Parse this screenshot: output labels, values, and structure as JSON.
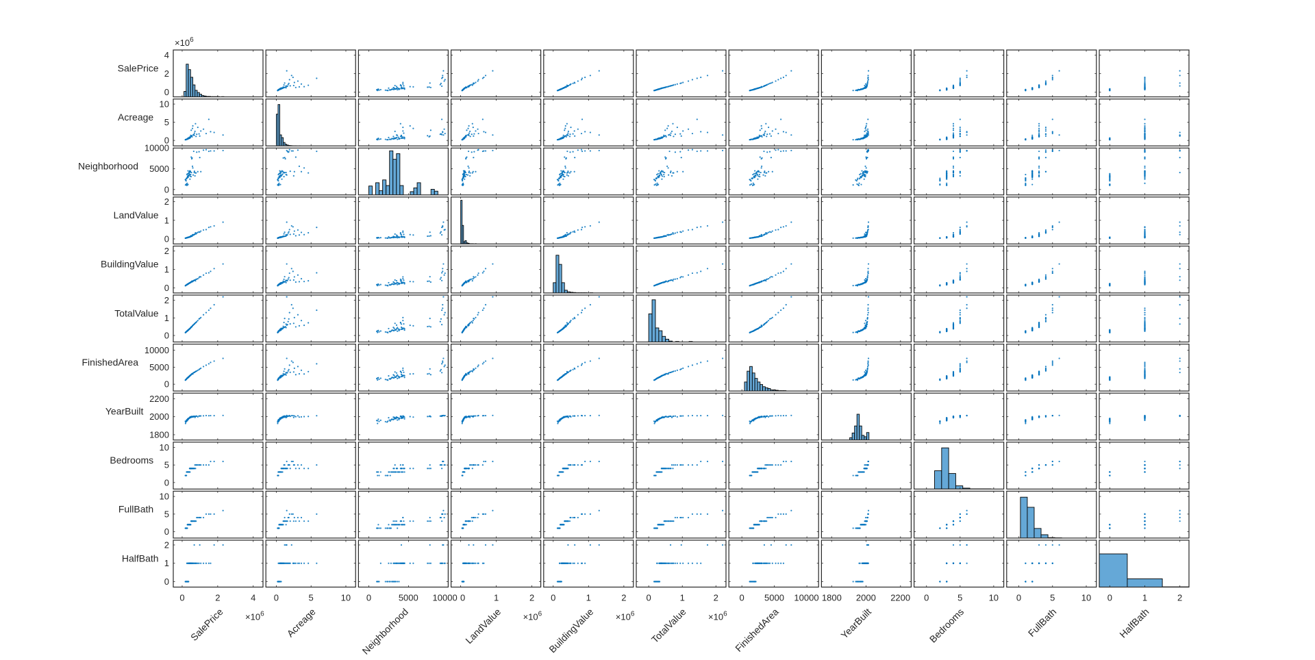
{
  "chart_data": {
    "type": "scatter-matrix",
    "title": "",
    "grid": false,
    "legend": "none",
    "diagonal": "histogram",
    "colors": {
      "marker": "#0072BD",
      "hist_fill": "#65A8D7",
      "hist_edge": "#000000",
      "axes": "#262626"
    },
    "variables": [
      {
        "name": "SalePrice",
        "lim": [
          -500000,
          4550000
        ],
        "ticks": [
          0,
          2000000,
          4000000
        ],
        "tick_labels": [
          "0",
          "2",
          "4"
        ],
        "multiplier": {
          "base": "×10",
          "exp": "6"
        },
        "hist": {
          "start": 100000,
          "width": 125000,
          "counts": [
            25,
            150,
            125,
            90,
            55,
            30,
            20,
            12,
            6,
            4,
            2,
            2,
            1,
            1,
            1,
            1,
            0,
            1
          ],
          "ymax": 215
        }
      },
      {
        "name": "Acreage",
        "lim": [
          -1.5,
          11.4
        ],
        "ticks": [
          0,
          5,
          10
        ],
        "tick_labels": [
          "0",
          "5",
          "10"
        ],
        "multiplier": null,
        "hist": {
          "start": 0,
          "width": 0.25,
          "counts": [
            230,
            300,
            80,
            60,
            25,
            12,
            6,
            3,
            2,
            1,
            1,
            1,
            0,
            1
          ],
          "ymax": 340
        }
      },
      {
        "name": "Neighborhood",
        "lim": [
          -1300,
          10000
        ],
        "ticks": [
          0,
          5000,
          10000
        ],
        "tick_labels": [
          "0",
          "5000",
          "10000"
        ],
        "multiplier": null,
        "hist": {
          "start": 0,
          "width": 435,
          "counts": [
            19,
            0,
            26,
            9,
            32,
            20,
            94,
            76,
            88,
            20,
            0,
            0,
            7,
            15,
            26,
            0,
            0,
            0,
            12,
            8,
            0,
            0,
            0
          ],
          "ymax": 100
        }
      },
      {
        "name": "LandValue",
        "lim": [
          -270000,
          2250000
        ],
        "ticks": [
          0,
          1000000,
          2000000
        ],
        "tick_labels": [
          "0",
          "1",
          "2"
        ],
        "multiplier": {
          "base": "×10",
          "exp": "6"
        },
        "hist": {
          "start": 0,
          "width": 40000,
          "counts": [
            200,
            85,
            10,
            15,
            5,
            3,
            1,
            1,
            1,
            0,
            1
          ],
          "ymax": 215
        }
      },
      {
        "name": "BuildingValue",
        "lim": [
          -270000,
          2270000
        ],
        "ticks": [
          0,
          1000000,
          2000000
        ],
        "tick_labels": [
          "0",
          "1",
          "2"
        ],
        "multiplier": {
          "base": "×10",
          "exp": "6"
        },
        "hist": {
          "start": 0,
          "width": 80000,
          "counts": [
            45,
            165,
            125,
            45,
            12,
            5,
            3,
            2,
            1,
            1,
            1,
            1,
            0,
            1
          ],
          "ymax": 205
        }
      },
      {
        "name": "TotalValue",
        "lim": [
          -370000,
          2300000
        ],
        "ticks": [
          0,
          1000000,
          2000000
        ],
        "tick_labels": [
          "0",
          "1",
          "2"
        ],
        "multiplier": {
          "base": "×10",
          "exp": "6"
        },
        "hist": {
          "start": 0,
          "width": 100000,
          "counts": [
            60,
            90,
            30,
            24,
            12,
            6,
            2,
            0,
            1,
            0,
            0,
            0,
            1
          ],
          "ymax": 100
        }
      },
      {
        "name": "FinishedArea",
        "lim": [
          -2000,
          11800
        ],
        "ticks": [
          0,
          5000,
          10000
        ],
        "tick_labels": [
          "0",
          "5000",
          "10000"
        ],
        "multiplier": null,
        "hist": {
          "start": 400,
          "width": 400,
          "counts": [
            25,
            55,
            68,
            50,
            35,
            25,
            18,
            12,
            9,
            7,
            3,
            3,
            2,
            1,
            1,
            1
          ],
          "ymax": 130
        }
      },
      {
        "name": "YearBuilt",
        "lim": [
          1741,
          2262
        ],
        "ticks": [
          1800,
          2000,
          2200
        ],
        "tick_labels": [
          "1800",
          "2000",
          "2200"
        ],
        "multiplier": null,
        "hist": {
          "start": 1905,
          "width": 14,
          "counts": [
            5,
            15,
            30,
            55,
            30,
            10,
            7,
            16
          ],
          "ymax": 100
        }
      },
      {
        "name": "Bedrooms",
        "lim": [
          -1.85,
          11.5
        ],
        "ticks": [
          0,
          5,
          10
        ],
        "tick_labels": [
          "0",
          "5",
          "10"
        ],
        "multiplier": null,
        "hist": {
          "start": 1.2,
          "width": 1.05,
          "counts": [
            80,
            180,
            68,
            14,
            4,
            1,
            1,
            1
          ],
          "ymax": 205
        }
      },
      {
        "name": "FullBath",
        "lim": [
          -1.8,
          11.5
        ],
        "ticks": [
          0,
          5,
          10
        ],
        "tick_labels": [
          "0",
          "5",
          "10"
        ],
        "multiplier": null,
        "hist": {
          "start": 0.24,
          "width": 1.02,
          "counts": [
            170,
            128,
            40,
            14,
            2,
            1
          ],
          "ymax": 195
        }
      },
      {
        "name": "HalfBath",
        "lim": [
          -0.3,
          2.26
        ],
        "ticks": [
          0,
          1,
          2
        ],
        "tick_labels": [
          "0",
          "1",
          "2"
        ],
        "multiplier": null,
        "hist": {
          "start": -0.5,
          "width": 1,
          "counts": [
            400,
            100,
            3
          ],
          "ymax": 565
        }
      }
    ],
    "record_columns": [
      "SalePrice",
      "Acreage",
      "Neighborhood",
      "LandValue",
      "BuildingValue",
      "TotalValue",
      "FinishedArea",
      "YearBuilt",
      "Bedrooms",
      "FullBath",
      "HalfBath"
    ],
    "records": [
      [
        310000,
        0.5,
        3200,
        80000,
        200000,
        280000,
        1900,
        1975,
        3,
        2,
        0
      ],
      [
        420000,
        0.8,
        3500,
        110000,
        270000,
        380000,
        2400,
        1988,
        4,
        2,
        1
      ],
      [
        250000,
        0.3,
        2600,
        60000,
        170000,
        230000,
        1600,
        1962,
        3,
        1,
        0
      ],
      [
        520000,
        1.2,
        4100,
        140000,
        330000,
        470000,
        2900,
        1995,
        4,
        3,
        1
      ],
      [
        380000,
        0.6,
        3800,
        90000,
        250000,
        340000,
        2200,
        1980,
        3,
        2,
        1
      ],
      [
        290000,
        0.4,
        1100,
        70000,
        190000,
        260000,
        1800,
        1955,
        3,
        1,
        0
      ],
      [
        650000,
        1.6,
        9200,
        220000,
        400000,
        620000,
        3400,
        2005,
        4,
        3,
        1
      ],
      [
        180000,
        0.2,
        2400,
        40000,
        120000,
        160000,
        1200,
        1950,
        2,
        1,
        0
      ],
      [
        460000,
        0.9,
        4400,
        120000,
        300000,
        420000,
        2600,
        1999,
        4,
        2,
        1
      ],
      [
        720000,
        2.5,
        3300,
        260000,
        430000,
        690000,
        3600,
        1992,
        5,
        3,
        1
      ],
      [
        340000,
        0.5,
        3000,
        85000,
        220000,
        305000,
        2000,
        1970,
        3,
        2,
        0
      ],
      [
        1200000,
        3.1,
        9500,
        480000,
        700000,
        1180000,
        5200,
        2010,
        5,
        4,
        1
      ],
      [
        560000,
        1.0,
        7600,
        150000,
        370000,
        520000,
        3100,
        2003,
        4,
        3,
        1
      ],
      [
        270000,
        0.3,
        2800,
        65000,
        180000,
        245000,
        1700,
        1965,
        3,
        1,
        1
      ],
      [
        400000,
        0.7,
        4200,
        100000,
        260000,
        360000,
        2300,
        1985,
        3,
        2,
        1
      ],
      [
        880000,
        3.6,
        4300,
        350000,
        500000,
        850000,
        4100,
        1998,
        5,
        4,
        1
      ],
      [
        330000,
        0.6,
        1200,
        75000,
        210000,
        285000,
        1900,
        1972,
        3,
        2,
        0
      ],
      [
        1800000,
        2.2,
        9300,
        700000,
        1050000,
        1750000,
        6800,
        2012,
        6,
        5,
        2
      ],
      [
        480000,
        1.4,
        3600,
        160000,
        290000,
        450000,
        2700,
        1990,
        4,
        2,
        1
      ],
      [
        220000,
        0.3,
        2100,
        50000,
        150000,
        200000,
        1400,
        1945,
        2,
        1,
        0
      ],
      [
        600000,
        4.0,
        5200,
        230000,
        350000,
        580000,
        3000,
        2001,
        4,
        3,
        1
      ],
      [
        370000,
        0.5,
        3900,
        95000,
        240000,
        335000,
        2100,
        1983,
        3,
        2,
        1
      ],
      [
        950000,
        1.8,
        9100,
        380000,
        560000,
        940000,
        4300,
        2008,
        5,
        4,
        1
      ],
      [
        300000,
        0.4,
        3100,
        72000,
        200000,
        272000,
        1850,
        1968,
        3,
        2,
        0
      ],
      [
        430000,
        0.8,
        4500,
        105000,
        280000,
        385000,
        2500,
        1994,
        4,
        2,
        1
      ],
      [
        2300000,
        1.5,
        9400,
        900000,
        1300000,
        2200000,
        7600,
        2014,
        6,
        6,
        2
      ],
      [
        510000,
        2.8,
        7800,
        170000,
        320000,
        490000,
        2800,
        2000,
        4,
        3,
        1
      ],
      [
        260000,
        0.3,
        1000,
        58000,
        175000,
        233000,
        1650,
        1958,
        3,
        1,
        0
      ],
      [
        780000,
        1.1,
        4000,
        270000,
        470000,
        740000,
        3800,
        2006,
        5,
        3,
        1
      ],
      [
        350000,
        0.6,
        3400,
        88000,
        230000,
        318000,
        2050,
        1978,
        3,
        2,
        1
      ],
      [
        1500000,
        5.8,
        9200,
        620000,
        820000,
        1440000,
        6000,
        2011,
        5,
        5,
        1
      ],
      [
        410000,
        0.9,
        3700,
        110000,
        265000,
        375000,
        2350,
        1987,
        3,
        2,
        1
      ],
      [
        200000,
        0.2,
        2300,
        45000,
        140000,
        185000,
        1300,
        1940,
        2,
        1,
        0
      ],
      [
        690000,
        2.0,
        4400,
        240000,
        420000,
        660000,
        3500,
        2004,
        4,
        3,
        1
      ],
      [
        320000,
        0.5,
        2900,
        78000,
        215000,
        293000,
        1950,
        1973,
        3,
        2,
        0
      ],
      [
        540000,
        1.3,
        7400,
        145000,
        360000,
        505000,
        3000,
        2002,
        4,
        3,
        1
      ],
      [
        1050000,
        2.6,
        4300,
        420000,
        600000,
        1020000,
        4700,
        2009,
        5,
        4,
        1
      ],
      [
        450000,
        0.7,
        3200,
        115000,
        290000,
        405000,
        2550,
        1991,
        4,
        2,
        1
      ],
      [
        280000,
        0.4,
        1500,
        68000,
        185000,
        253000,
        1750,
        1960,
        3,
        1,
        1
      ],
      [
        820000,
        1.7,
        9000,
        310000,
        480000,
        790000,
        3900,
        2007,
        5,
        4,
        1
      ],
      [
        390000,
        0.6,
        4100,
        98000,
        255000,
        353000,
        2250,
        1982,
        3,
        2,
        1
      ],
      [
        240000,
        0.3,
        2700,
        55000,
        160000,
        215000,
        1500,
        1952,
        2,
        1,
        0
      ],
      [
        620000,
        1.5,
        3500,
        200000,
        390000,
        590000,
        3300,
        1997,
        4,
        3,
        1
      ],
      [
        1350000,
        1.9,
        9600,
        500000,
        800000,
        1300000,
        5600,
        2013,
        5,
        5,
        1
      ],
      [
        360000,
        0.5,
        3300,
        90000,
        235000,
        325000,
        2150,
        1979,
        3,
        2,
        0
      ],
      [
        470000,
        1.0,
        4200,
        125000,
        305000,
        430000,
        2650,
        1993,
        4,
        2,
        1
      ],
      [
        190000,
        0.2,
        1100,
        42000,
        130000,
        172000,
        1250,
        1925,
        2,
        1,
        0
      ],
      [
        580000,
        3.3,
        5600,
        210000,
        340000,
        550000,
        3050,
        1996,
        4,
        3,
        1
      ],
      [
        300000,
        0.4,
        3800,
        74000,
        205000,
        279000,
        1880,
        1969,
        3,
        2,
        0
      ],
      [
        990000,
        1.2,
        7700,
        360000,
        610000,
        970000,
        4500,
        2008,
        5,
        4,
        2
      ],
      [
        440000,
        0.8,
        2500,
        108000,
        285000,
        393000,
        2450,
        1989,
        3,
        2,
        1
      ],
      [
        330000,
        0.5,
        4500,
        82000,
        225000,
        307000,
        2000,
        1976,
        3,
        2,
        1
      ],
      [
        750000,
        4.6,
        4000,
        330000,
        390000,
        720000,
        3700,
        2003,
        4,
        3,
        1
      ],
      [
        270000,
        0.3,
        3600,
        62000,
        182000,
        244000,
        1700,
        1963,
        3,
        1,
        0
      ],
      [
        1600000,
        2.4,
        9300,
        650000,
        900000,
        1550000,
        6400,
        2012,
        6,
        5,
        1
      ],
      [
        500000,
        1.1,
        3100,
        135000,
        325000,
        460000,
        2750,
        1996,
        4,
        3,
        1
      ],
      [
        410000,
        0.6,
        4300,
        102000,
        270000,
        372000,
        2400,
        1986,
        3,
        2,
        1
      ],
      [
        230000,
        0.3,
        1300,
        52000,
        155000,
        207000,
        1450,
        1948,
        2,
        1,
        0
      ],
      [
        680000,
        1.4,
        4100,
        230000,
        420000,
        650000,
        3450,
        2005,
        4,
        3,
        2
      ],
      [
        350000,
        0.7,
        3400,
        86000,
        232000,
        318000,
        2100,
        1981,
        3,
        2,
        0
      ]
    ]
  }
}
